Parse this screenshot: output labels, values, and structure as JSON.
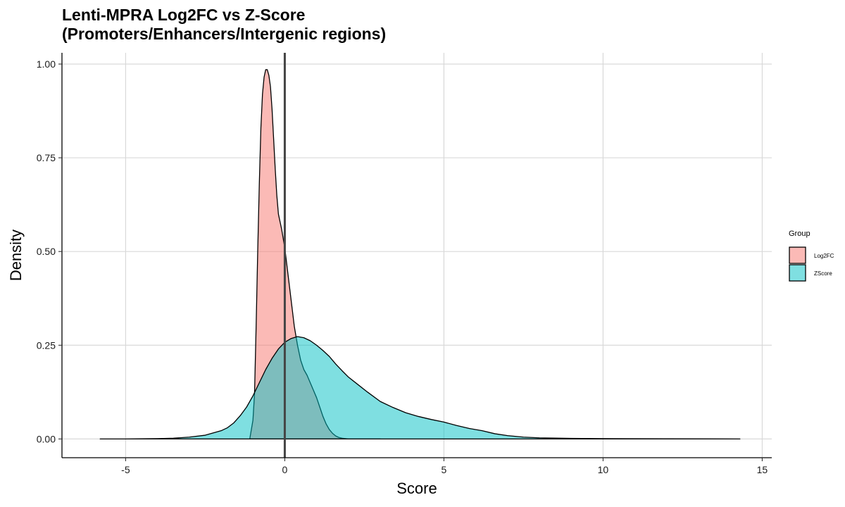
{
  "chart_data": {
    "type": "area",
    "title_lines": [
      "Lenti-MPRA Log2FC vs Z-Score",
      "(Promoters/Enhancers/Intergenic regions)"
    ],
    "xlabel": "Score",
    "ylabel": "Density",
    "xlim": [
      -7,
      15.3
    ],
    "ylim": [
      -0.05,
      1.03
    ],
    "x_ticks": [
      -5,
      0,
      5,
      10,
      15
    ],
    "x_tick_labels": [
      "-5",
      "0",
      "5",
      "10",
      "15"
    ],
    "y_ticks": [
      0,
      0.25,
      0.5,
      0.75,
      1.0
    ],
    "y_tick_labels": [
      "0.00",
      "0.25",
      "0.50",
      "0.75",
      "1.00"
    ],
    "grid": true,
    "vline_x": 0,
    "legend": {
      "title": "Group",
      "position": "right"
    },
    "series": [
      {
        "name": "Log2FC",
        "color": "#F8766D",
        "points": [
          [
            -1.1,
            0.0
          ],
          [
            -1.0,
            0.05
          ],
          [
            -0.95,
            0.12
          ],
          [
            -0.9,
            0.3
          ],
          [
            -0.85,
            0.5
          ],
          [
            -0.8,
            0.68
          ],
          [
            -0.75,
            0.83
          ],
          [
            -0.7,
            0.92
          ],
          [
            -0.65,
            0.965
          ],
          [
            -0.6,
            0.985
          ],
          [
            -0.55,
            0.985
          ],
          [
            -0.5,
            0.97
          ],
          [
            -0.45,
            0.94
          ],
          [
            -0.4,
            0.88
          ],
          [
            -0.35,
            0.8
          ],
          [
            -0.3,
            0.72
          ],
          [
            -0.25,
            0.65
          ],
          [
            -0.2,
            0.6
          ],
          [
            -0.1,
            0.56
          ],
          [
            0.0,
            0.51
          ],
          [
            0.1,
            0.44
          ],
          [
            0.2,
            0.37
          ],
          [
            0.3,
            0.3
          ],
          [
            0.4,
            0.25
          ],
          [
            0.5,
            0.21
          ],
          [
            0.6,
            0.185
          ],
          [
            0.7,
            0.17
          ],
          [
            0.8,
            0.15
          ],
          [
            0.9,
            0.13
          ],
          [
            1.0,
            0.11
          ],
          [
            1.1,
            0.085
          ],
          [
            1.2,
            0.06
          ],
          [
            1.3,
            0.04
          ],
          [
            1.4,
            0.025
          ],
          [
            1.5,
            0.015
          ],
          [
            1.6,
            0.008
          ],
          [
            1.7,
            0.004
          ],
          [
            1.8,
            0.002
          ],
          [
            2.0,
            0.0
          ],
          [
            2.5,
            0.0
          ],
          [
            3.0,
            0.0
          ]
        ]
      },
      {
        "name": "ZScore",
        "color": "#00BFC4",
        "points": [
          [
            -5.8,
            0.0
          ],
          [
            -5.0,
            0.0
          ],
          [
            -4.0,
            0.001
          ],
          [
            -3.5,
            0.002
          ],
          [
            -3.0,
            0.005
          ],
          [
            -2.5,
            0.01
          ],
          [
            -2.0,
            0.022
          ],
          [
            -1.8,
            0.03
          ],
          [
            -1.6,
            0.043
          ],
          [
            -1.4,
            0.062
          ],
          [
            -1.2,
            0.085
          ],
          [
            -1.0,
            0.115
          ],
          [
            -0.8,
            0.15
          ],
          [
            -0.6,
            0.185
          ],
          [
            -0.4,
            0.215
          ],
          [
            -0.2,
            0.24
          ],
          [
            0.0,
            0.258
          ],
          [
            0.2,
            0.268
          ],
          [
            0.4,
            0.273
          ],
          [
            0.6,
            0.27
          ],
          [
            0.8,
            0.262
          ],
          [
            1.0,
            0.25
          ],
          [
            1.2,
            0.236
          ],
          [
            1.4,
            0.22
          ],
          [
            1.6,
            0.2
          ],
          [
            1.8,
            0.182
          ],
          [
            2.0,
            0.165
          ],
          [
            2.3,
            0.145
          ],
          [
            2.6,
            0.125
          ],
          [
            3.0,
            0.1
          ],
          [
            3.4,
            0.084
          ],
          [
            3.8,
            0.07
          ],
          [
            4.2,
            0.06
          ],
          [
            4.6,
            0.052
          ],
          [
            5.0,
            0.045
          ],
          [
            5.4,
            0.036
          ],
          [
            5.8,
            0.028
          ],
          [
            6.2,
            0.022
          ],
          [
            6.6,
            0.014
          ],
          [
            7.0,
            0.009
          ],
          [
            7.5,
            0.005
          ],
          [
            8.0,
            0.003
          ],
          [
            9.0,
            0.0015
          ],
          [
            10.0,
            0.001
          ],
          [
            12.0,
            0.0004
          ],
          [
            14.3,
            0.0
          ]
        ]
      }
    ]
  }
}
